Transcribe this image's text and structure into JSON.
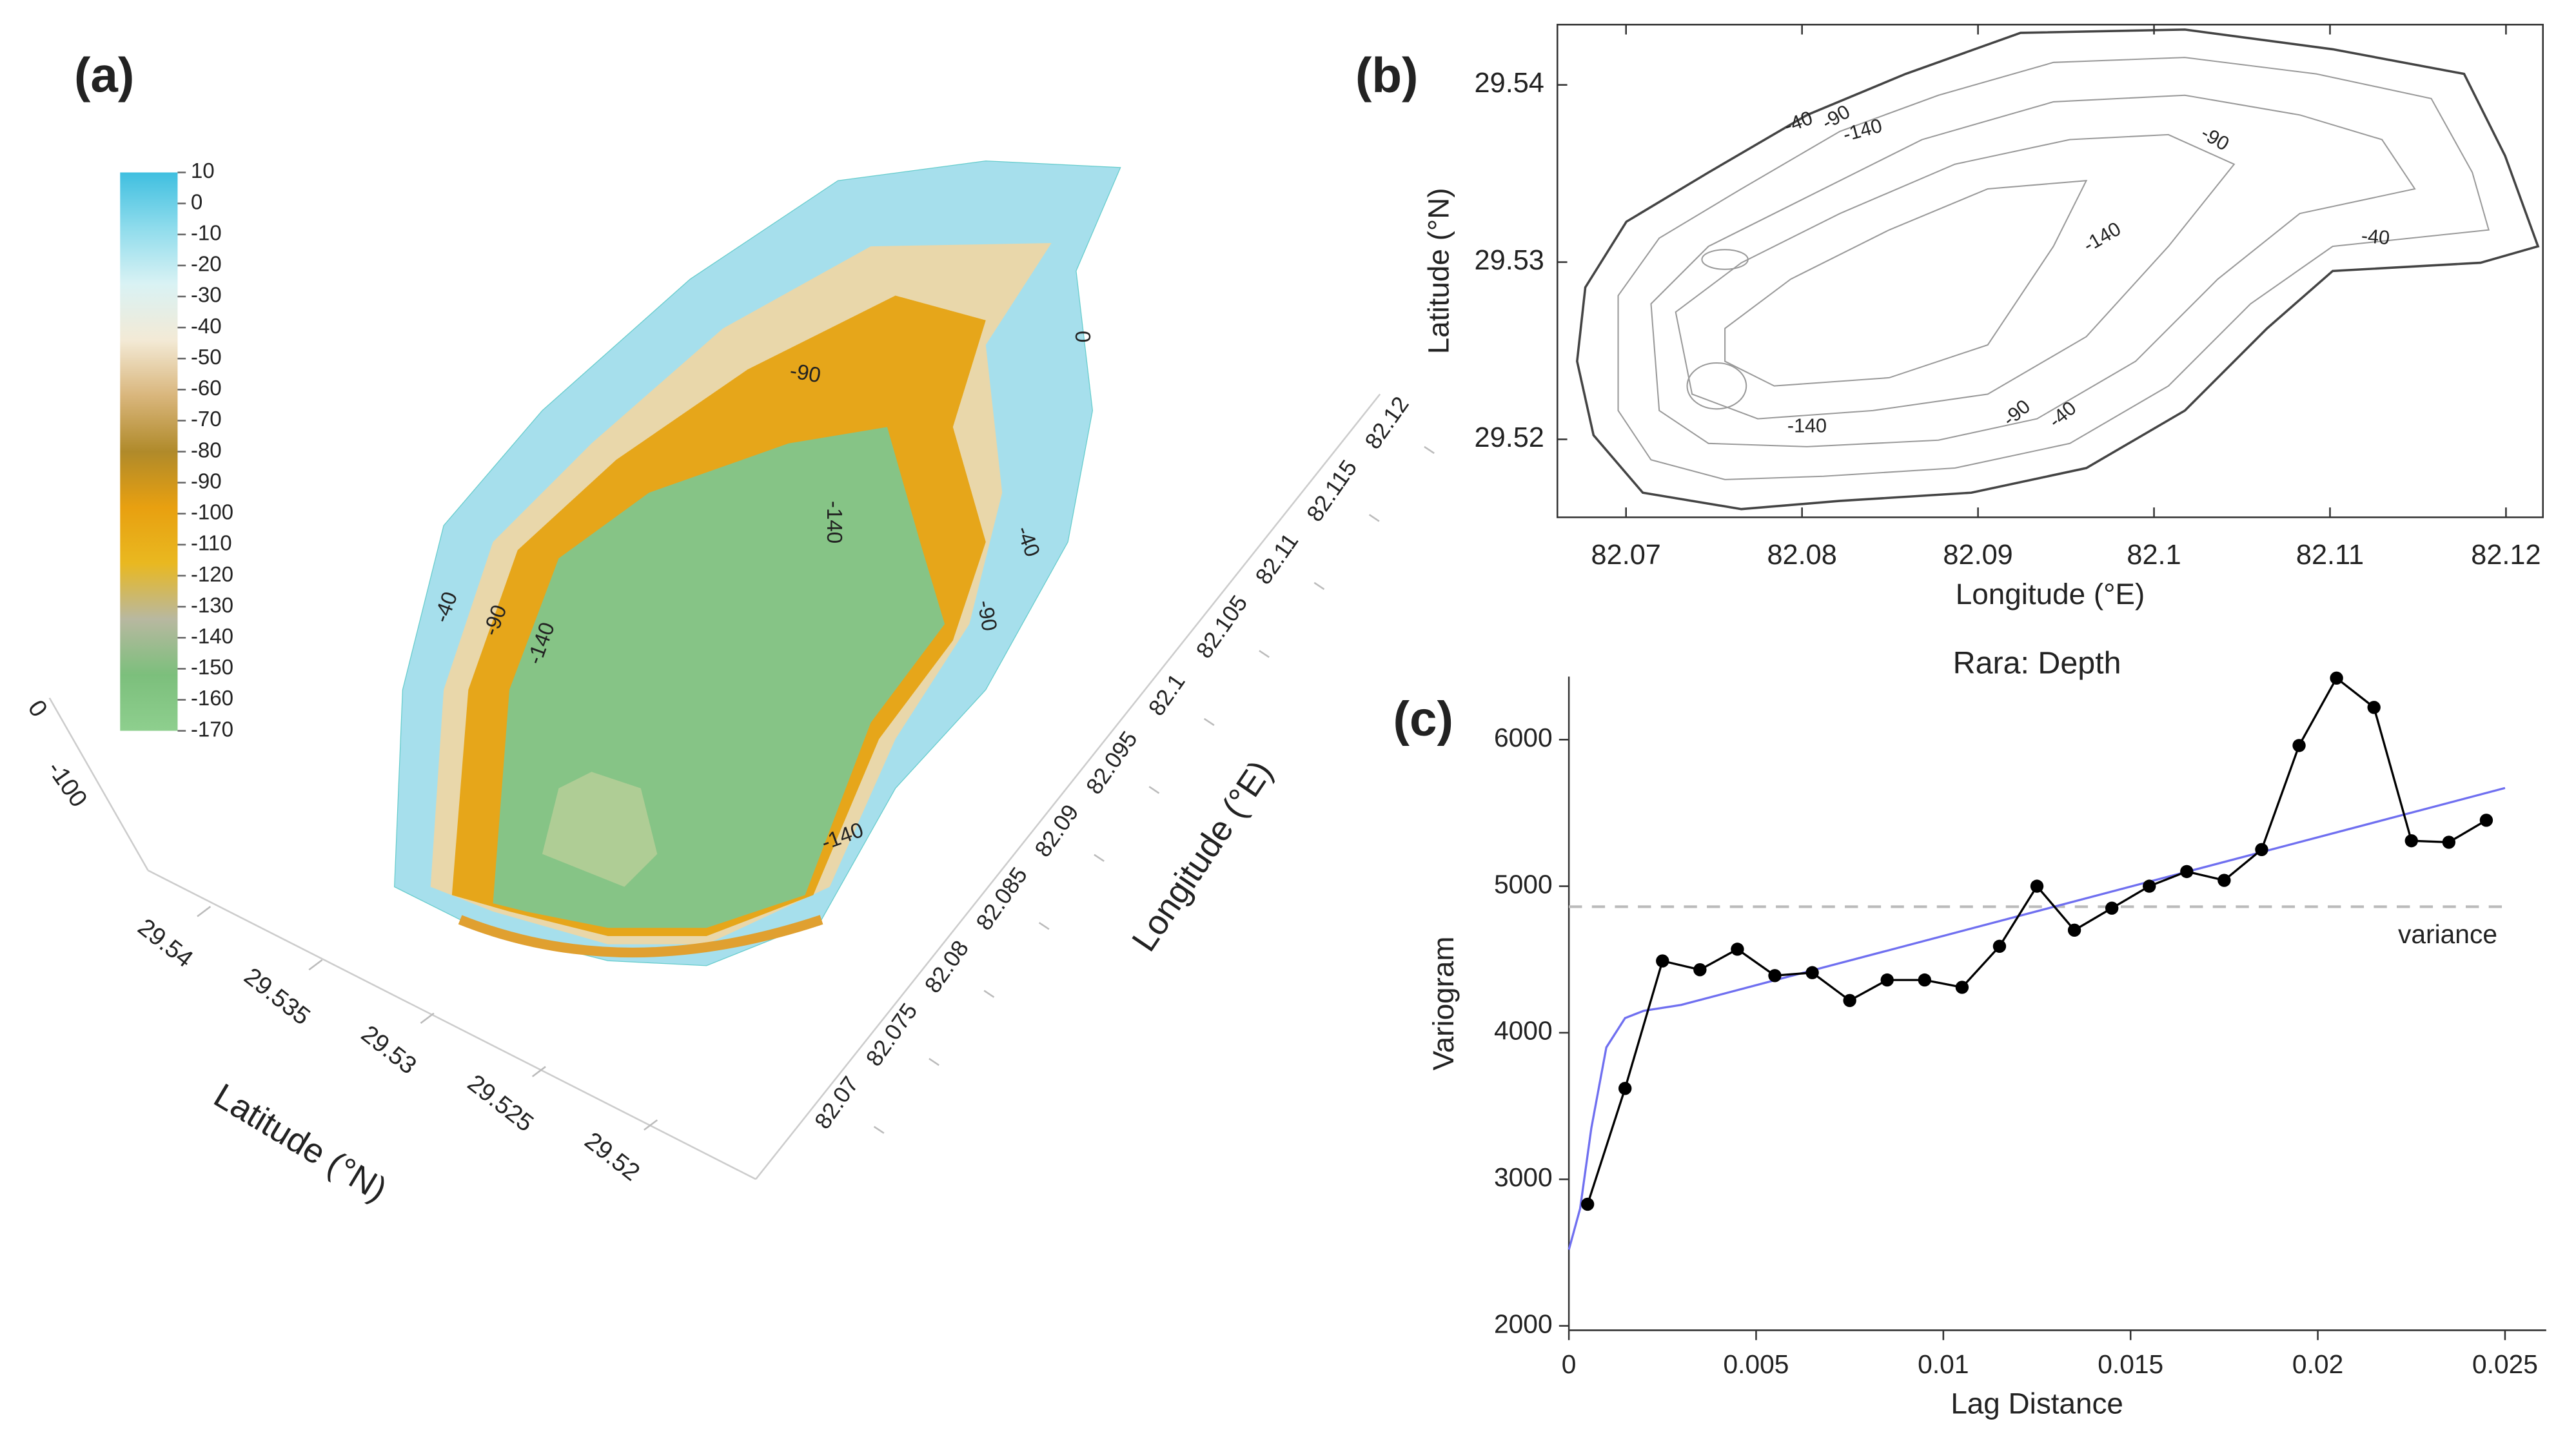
{
  "chart_data": [
    {
      "type": "surface3d",
      "panel_label": "(a)",
      "colorbar_ticks": [
        10,
        0,
        -10,
        -20,
        -30,
        -40,
        -50,
        -60,
        -70,
        -80,
        -90,
        -100,
        -110,
        -120,
        -130,
        -140,
        -150,
        -160,
        -170
      ],
      "clim": [
        -170,
        10
      ],
      "colorbar_colors": [
        "#3fbfe0",
        "#8fdcec",
        "#d9f2f4",
        "#f3ead6",
        "#d9b67c",
        "#b08a2a",
        "#e8a010",
        "#e9b820",
        "#b8b8a0",
        "#7cbf7c",
        "#8ecf8e"
      ],
      "xlabel": "Longitude (°E)",
      "xticks": [
        82.07,
        82.075,
        82.08,
        82.085,
        82.09,
        82.095,
        82.1,
        82.105,
        82.11,
        82.115,
        82.12
      ],
      "ylabel": "Latitude (°N)",
      "yticks": [
        29.54,
        29.535,
        29.53,
        29.525,
        29.52
      ],
      "zticks": [
        0,
        -100
      ],
      "contour_labels": [
        "0",
        "-90",
        "-140",
        "-40",
        "-90",
        "-40",
        "-90",
        "-140",
        "-140"
      ]
    },
    {
      "type": "contour",
      "panel_label": "(b)",
      "xlabel": "Longitude (°E)",
      "ylabel": "Latitude (°N)",
      "xlim": [
        82.0661,
        82.1221
      ],
      "xticks": [
        82.07,
        82.08,
        82.09,
        82.1,
        82.11,
        82.12
      ],
      "ylim": [
        29.5156,
        29.5434
      ],
      "yticks": [
        29.52,
        29.53,
        29.54
      ],
      "contour_labels": [
        "-40",
        "-90",
        "-140",
        "-90",
        "-140",
        "-40",
        "-140",
        "-90",
        "-40"
      ]
    },
    {
      "type": "line",
      "panel_label": "(c)",
      "title": "Rara: Depth",
      "xlabel": "Lag Distance",
      "ylabel": "Variogram",
      "xlim": [
        0,
        0.0261
      ],
      "xticks": [
        0,
        0.005,
        0.01,
        0.015,
        0.02,
        0.025
      ],
      "ylim": [
        1970,
        6430
      ],
      "yticks": [
        2000,
        3000,
        4000,
        5000,
        6000
      ],
      "variance": 4860,
      "variance_label": "variance",
      "series": [
        {
          "color": "#000000",
          "x": [
            0.0005,
            0.0015,
            0.0025,
            0.0035,
            0.0045,
            0.0055,
            0.0065,
            0.0075,
            0.0085,
            0.0095,
            0.0105,
            0.0115,
            0.0125,
            0.0135,
            0.0145,
            0.0155,
            0.0165,
            0.0175,
            0.0185,
            0.0195,
            0.0205,
            0.0215,
            0.0225,
            0.0235,
            0.0245
          ],
          "values": [
            2830,
            3620,
            4490,
            4430,
            4570,
            4390,
            4410,
            4220,
            4360,
            4360,
            4310,
            4590,
            5000,
            4700,
            4850,
            5000,
            5100,
            5040,
            5250,
            5960,
            6420,
            6220,
            5310,
            5300,
            5450
          ]
        },
        {
          "color": "#6f6ff0",
          "x": [
            0,
            0.0003,
            0.0006,
            0.001,
            0.0015,
            0.002,
            0.003,
            0.025
          ],
          "values": [
            2520,
            2800,
            3350,
            3900,
            4100,
            4150,
            4190,
            5670
          ]
        }
      ]
    }
  ]
}
